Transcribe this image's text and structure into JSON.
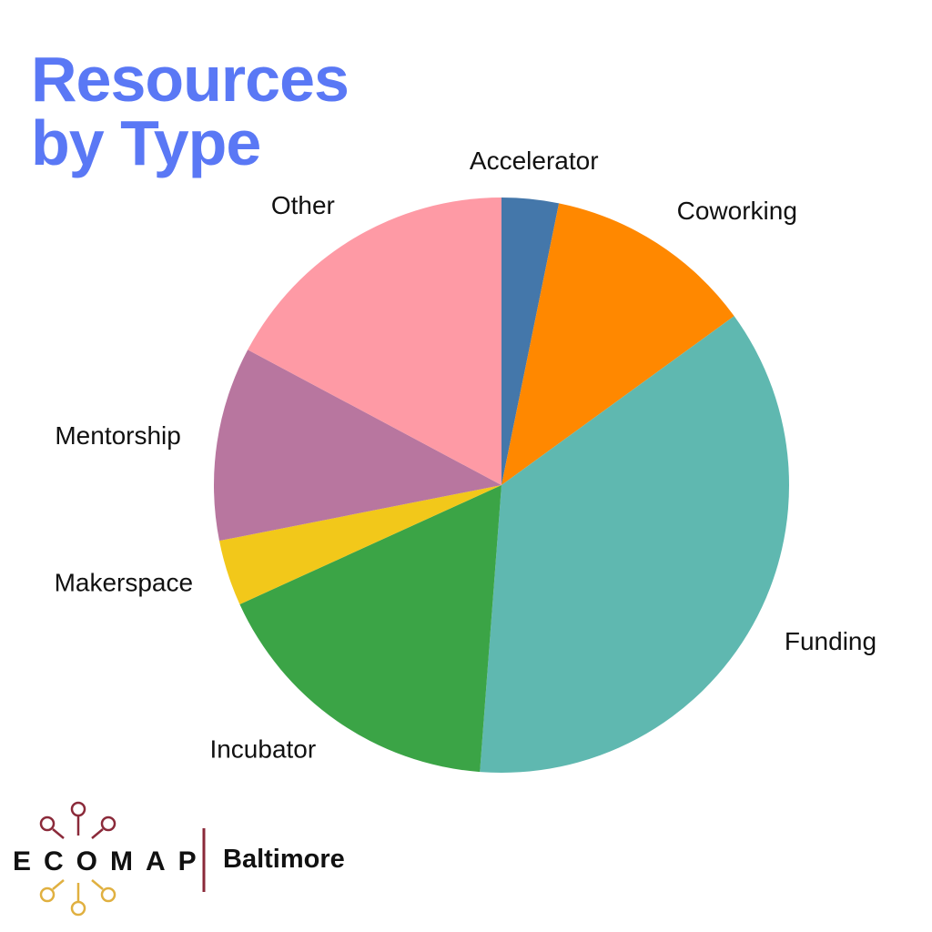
{
  "chart_data": {
    "type": "pie",
    "title": "Resources by Type",
    "categories": [
      "Accelerator",
      "Coworking",
      "Funding",
      "Incubator",
      "Makerspace",
      "Mentorship",
      "Other"
    ],
    "values": [
      3.2,
      11.8,
      36.2,
      17,
      3.7,
      10.9,
      17.2
    ],
    "colors": [
      "#4477aa",
      "#ff8800",
      "#5fb8b0",
      "#3ba446",
      "#f2c81a",
      "#b8769f",
      "#fe9aa5"
    ]
  },
  "branding": {
    "logo": "ECOMAP",
    "location": "Baltimore"
  }
}
